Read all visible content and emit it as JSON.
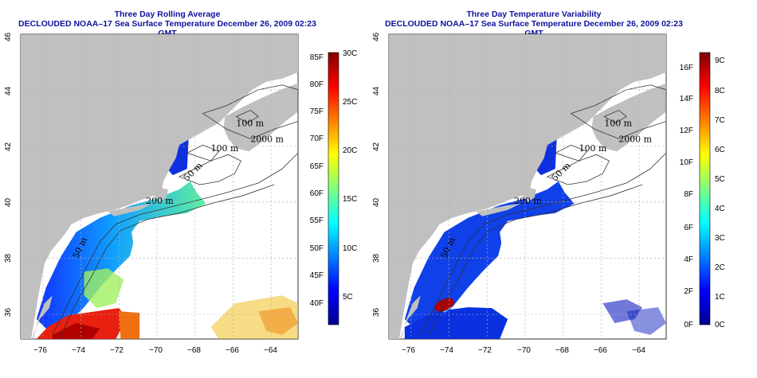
{
  "left_panel": {
    "title": "Three Day Rolling Average",
    "subtitle": "DECLOUDED NOAA–17 Sea Surface Temperature December 26, 2009 02:23 GMT",
    "lon_labels": [
      "−76",
      "−74",
      "−72",
      "−70",
      "−68",
      "−66",
      "−64"
    ],
    "lat_labels": [
      "36",
      "38",
      "40",
      "42",
      "44",
      "46"
    ],
    "contour_labels": [
      "100 m",
      "2000 m",
      "100 m",
      "50 m",
      "200 m",
      "50 m"
    ],
    "colorbar_f": [
      "85F",
      "80F",
      "75F",
      "70F",
      "65F",
      "60F",
      "55F",
      "50F",
      "45F",
      "40F"
    ],
    "colorbar_c": [
      "30C",
      "25C",
      "20C",
      "15C",
      "10C",
      "5C"
    ]
  },
  "right_panel": {
    "title": "Three Day Temperature Variability",
    "subtitle": "DECLOUDED NOAA–17 Sea Surface Temperature December 26, 2009 02:23 GMT",
    "lon_labels": [
      "−76",
      "−74",
      "−72",
      "−70",
      "−68",
      "−66",
      "−64"
    ],
    "lat_labels": [
      "36",
      "38",
      "40",
      "42",
      "44",
      "46"
    ],
    "contour_labels": [
      "100 m",
      "2000 m",
      "100 m",
      "50 m",
      "200 m",
      "50 m"
    ],
    "colorbar_f": [
      "16F",
      "14F",
      "12F",
      "10F",
      "8F",
      "6F",
      "4F",
      "2F",
      "0F"
    ],
    "colorbar_c": [
      "9C",
      "8C",
      "7C",
      "6C",
      "5C",
      "4C",
      "3C",
      "2C",
      "1C",
      "0C"
    ]
  },
  "colors": {
    "land": "#c0c0c0",
    "ocean_nodata": "#ffffff",
    "title_blue": "#1010a0",
    "grid": "#b0b0b0"
  }
}
